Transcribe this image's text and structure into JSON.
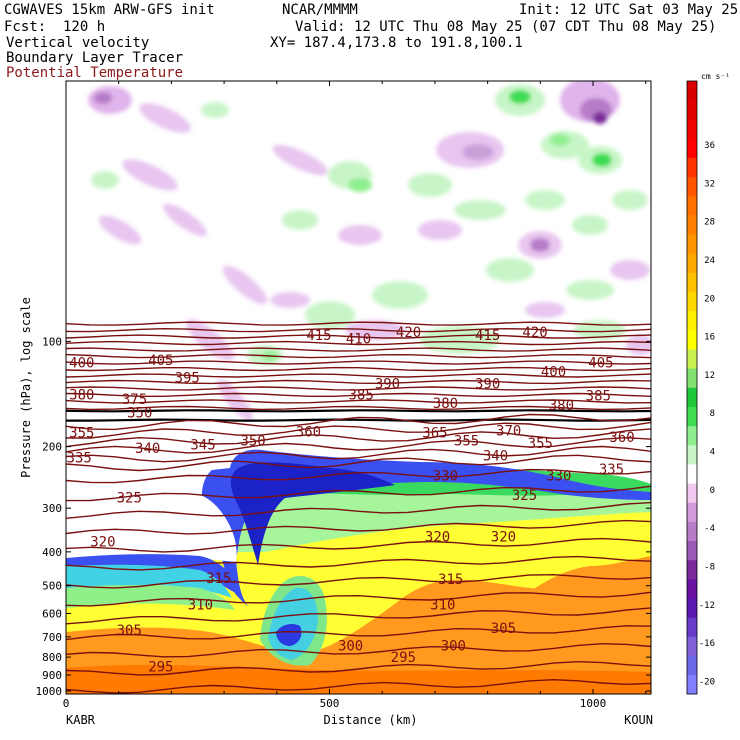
{
  "header": {
    "model": "CGWAVES 15km ARW-GFS init",
    "org": "NCAR/MMMM",
    "init": "Init: 12 UTC Sat 03 May 25",
    "fcst": "Fcst:  120 h",
    "valid": "Valid: 12 UTC Thu 08 May 25 (07 CDT Thu 08 May 25)",
    "field1": "Vertical velocity",
    "field2": "Boundary Layer Tracer",
    "field3": "Potential Temperature",
    "xy": "XY= 187.4,173.8 to 191.8,100.1"
  },
  "colors": {
    "theta": "#7a1010",
    "field3_text": "#8b1a1a"
  },
  "chart_data": {
    "type": "heatmap",
    "title": "Vertical velocity",
    "xlabel": "Distance (km)",
    "ylabel": "Pressure (hPa), log scale",
    "xlim": [
      0,
      1110
    ],
    "ylim": [
      1020,
      18
    ],
    "x_ticks": [
      0,
      500,
      1000
    ],
    "y_ticks": [
      100,
      200,
      300,
      400,
      500,
      600,
      700,
      800,
      900,
      1000
    ],
    "left_station": "KABR",
    "right_station": "KOUN",
    "colorbar": {
      "units": "cm s⁻¹",
      "levels": [
        -22,
        -20,
        -18,
        -16,
        -14,
        -12,
        -10,
        -8,
        -6,
        -4,
        -2,
        0,
        2,
        4,
        6,
        8,
        10,
        12,
        14,
        16,
        18,
        20,
        22,
        24,
        26,
        28,
        30,
        32,
        34,
        36,
        38,
        40,
        42
      ],
      "colors": [
        "#8080ff",
        "#6a6ae8",
        "#8060d8",
        "#6a3ac8",
        "#5a1ab0",
        "#6a10a0",
        "#7a2a9a",
        "#9a5ab5",
        "#b67cc8",
        "#d29ad8",
        "#f0c8f0",
        "#ffffff",
        "#c8f5c8",
        "#8fef8f",
        "#3ddc52",
        "#1fc83a",
        "#82e070",
        "#c8f050",
        "#ffff00",
        "#fff000",
        "#ffd800",
        "#ffc000",
        "#ffa800",
        "#ff9500",
        "#ff8000",
        "#ff7000",
        "#ff5500",
        "#ff3500",
        "#ff0000",
        "#f00000",
        "#e00000",
        "#d80000"
      ],
      "tick_labels": [
        "-20",
        "-16",
        "-12",
        "-8",
        "-4",
        "0",
        "4",
        "8",
        "12",
        "16",
        "20",
        "24",
        "28",
        "32",
        "36"
      ]
    },
    "isentrope_labels": [
      {
        "v": "415",
        "x": 480,
        "p": 96
      },
      {
        "v": "410",
        "x": 555,
        "p": 98
      },
      {
        "v": "420",
        "x": 650,
        "p": 94
      },
      {
        "v": "415",
        "x": 800,
        "p": 96
      },
      {
        "v": "420",
        "x": 890,
        "p": 94
      },
      {
        "v": "400",
        "x": 30,
        "p": 115
      },
      {
        "v": "405",
        "x": 180,
        "p": 113
      },
      {
        "v": "395",
        "x": 230,
        "p": 127
      },
      {
        "v": "390",
        "x": 610,
        "p": 132
      },
      {
        "v": "390",
        "x": 800,
        "p": 132
      },
      {
        "v": "400",
        "x": 925,
        "p": 122
      },
      {
        "v": "405",
        "x": 1015,
        "p": 115
      },
      {
        "v": "380",
        "x": 30,
        "p": 142
      },
      {
        "v": "375",
        "x": 130,
        "p": 146
      },
      {
        "v": "385",
        "x": 560,
        "p": 142
      },
      {
        "v": "380",
        "x": 720,
        "p": 150
      },
      {
        "v": "380",
        "x": 940,
        "p": 152
      },
      {
        "v": "385",
        "x": 1010,
        "p": 143
      },
      {
        "v": "370",
        "x": 840,
        "p": 180
      },
      {
        "v": "355",
        "x": 30,
        "p": 182
      },
      {
        "v": "350",
        "x": 140,
        "p": 160
      },
      {
        "v": "360",
        "x": 460,
        "p": 181
      },
      {
        "v": "365",
        "x": 700,
        "p": 182
      },
      {
        "v": "355",
        "x": 760,
        "p": 192
      },
      {
        "v": "355",
        "x": 900,
        "p": 195
      },
      {
        "v": "360",
        "x": 1055,
        "p": 188
      },
      {
        "v": "345",
        "x": 260,
        "p": 197
      },
      {
        "v": "350",
        "x": 355,
        "p": 192
      },
      {
        "v": "340",
        "x": 155,
        "p": 202
      },
      {
        "v": "335",
        "x": 25,
        "p": 215
      },
      {
        "v": "340",
        "x": 815,
        "p": 212
      },
      {
        "v": "330",
        "x": 720,
        "p": 242
      },
      {
        "v": "330",
        "x": 935,
        "p": 242
      },
      {
        "v": "335",
        "x": 1035,
        "p": 232
      },
      {
        "v": "325",
        "x": 120,
        "p": 280
      },
      {
        "v": "325",
        "x": 870,
        "p": 275
      },
      {
        "v": "320",
        "x": 70,
        "p": 373
      },
      {
        "v": "320",
        "x": 705,
        "p": 362
      },
      {
        "v": "320",
        "x": 830,
        "p": 362
      },
      {
        "v": "315",
        "x": 290,
        "p": 475
      },
      {
        "v": "315",
        "x": 730,
        "p": 478
      },
      {
        "v": "310",
        "x": 255,
        "p": 565
      },
      {
        "v": "310",
        "x": 715,
        "p": 565
      },
      {
        "v": "305",
        "x": 120,
        "p": 670
      },
      {
        "v": "305",
        "x": 830,
        "p": 660
      },
      {
        "v": "300",
        "x": 540,
        "p": 740
      },
      {
        "v": "300",
        "x": 735,
        "p": 740
      },
      {
        "v": "295",
        "x": 180,
        "p": 850
      },
      {
        "v": "295",
        "x": 640,
        "p": 800
      }
    ]
  }
}
